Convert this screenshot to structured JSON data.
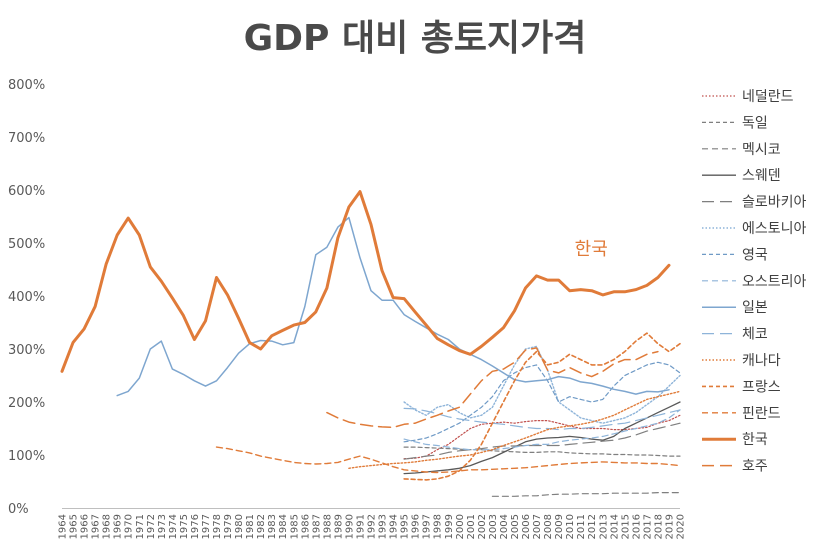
{
  "chart_data": {
    "type": "line",
    "title": "GDP 대비 총토지가격",
    "xlabel": "",
    "ylabel": "",
    "ylim": [
      0,
      800
    ],
    "yticks": [
      "0%",
      "100%",
      "200%",
      "300%",
      "400%",
      "500%",
      "600%",
      "700%",
      "800%"
    ],
    "yticks_values": [
      0,
      100,
      200,
      300,
      400,
      500,
      600,
      700,
      800
    ],
    "x_range": [
      1964,
      2020
    ],
    "grid": false,
    "legend_position": "right",
    "annotation": {
      "text": "한국",
      "x": 2011,
      "y": 455
    },
    "series": [
      {
        "name": "네덜란드",
        "color": "#c0504d",
        "style": "dotted",
        "width": 1.2,
        "start": 1995,
        "values": [
          93,
          94,
          98,
          110,
          120,
          135,
          150,
          158,
          160,
          162,
          160,
          163,
          165,
          165,
          160,
          155,
          150,
          150,
          150,
          148,
          148,
          150,
          152,
          160,
          165,
          175
        ]
      },
      {
        "name": "독일",
        "color": "#7f7f7f",
        "style": "dashed-short",
        "width": 1.2,
        "start": 1995,
        "values": [
          115,
          115,
          114,
          113,
          112,
          111,
          110,
          110,
          108,
          107,
          106,
          105,
          105,
          106,
          106,
          104,
          103,
          102,
          102,
          101,
          101,
          100,
          100,
          99,
          98,
          98
        ]
      },
      {
        "name": "멕시코",
        "color": "#7f7f7f",
        "style": "dashed",
        "width": 1.2,
        "start": 2003,
        "values": [
          22,
          22,
          22,
          23,
          23,
          25,
          26,
          26,
          27,
          27,
          27,
          28,
          28,
          28,
          28,
          29,
          29,
          29
        ]
      },
      {
        "name": "스웨덴",
        "color": "#595959",
        "style": "solid",
        "width": 1.3,
        "start": 1995,
        "values": [
          65,
          66,
          68,
          70,
          72,
          75,
          80,
          88,
          95,
          105,
          115,
          125,
          130,
          132,
          133,
          135,
          133,
          130,
          128,
          135,
          150,
          160,
          170,
          180,
          190,
          200
        ]
      },
      {
        "name": "슬로바키아",
        "color": "#7f7f7f",
        "style": "longdash",
        "width": 1.2,
        "start": 1995,
        "values": [
          92,
          95,
          98,
          100,
          105,
          108,
          110,
          112,
          115,
          117,
          117,
          118,
          118,
          118,
          118,
          120,
          122,
          124,
          126,
          128,
          132,
          138,
          145,
          150,
          155,
          160
        ]
      },
      {
        "name": "에스토니아",
        "color": "#8eb4d9",
        "style": "dotted",
        "width": 1.4,
        "start": 1995,
        "values": [
          200,
          185,
          175,
          190,
          195,
          180,
          170,
          175,
          190,
          230,
          270,
          300,
          305,
          260,
          200,
          185,
          170,
          165,
          160,
          165,
          170,
          180,
          195,
          210,
          230,
          250
        ]
      },
      {
        "name": "영국",
        "color": "#6f9ac6",
        "style": "dashed-short",
        "width": 1.2,
        "start": 1995,
        "values": [
          125,
          128,
          132,
          140,
          150,
          160,
          175,
          190,
          210,
          240,
          255,
          265,
          270,
          240,
          200,
          210,
          205,
          200,
          205,
          230,
          250,
          260,
          270,
          275,
          270,
          255
        ]
      },
      {
        "name": "오스트리아",
        "color": "#8eb4d9",
        "style": "dashed",
        "width": 1.2,
        "start": 1995,
        "values": [
          130,
          125,
          120,
          118,
          115,
          112,
          110,
          110,
          110,
          112,
          115,
          118,
          120,
          120,
          125,
          128,
          130,
          132,
          135,
          140,
          145,
          150,
          155,
          160,
          170,
          185
        ]
      },
      {
        "name": "일본",
        "color": "#7ea6cf",
        "style": "solid",
        "width": 1.5,
        "start": 1969,
        "values": [
          212,
          220,
          245,
          300,
          315,
          262,
          252,
          240,
          230,
          240,
          265,
          292,
          310,
          316,
          315,
          308,
          312,
          380,
          478,
          492,
          530,
          548,
          472,
          410,
          392,
          392,
          365,
          352,
          340,
          328,
          318,
          300,
          290,
          280,
          268,
          255,
          242,
          238,
          240,
          242,
          248,
          245,
          238,
          235,
          230,
          224,
          220,
          215,
          220,
          219,
          223
        ]
      },
      {
        "name": "체코",
        "color": "#8eb4d9",
        "style": "longdash",
        "width": 1.2,
        "start": 1995,
        "values": [
          188,
          187,
          183,
          178,
          172,
          168,
          165,
          162,
          160,
          158,
          155,
          152,
          150,
          150,
          148,
          150,
          150,
          152,
          155,
          158,
          160,
          165,
          170,
          175,
          180,
          185
        ]
      },
      {
        "name": "캐나다",
        "color": "#e07b39",
        "style": "dotted",
        "width": 1.4,
        "start": 1990,
        "values": [
          75,
          78,
          80,
          82,
          84,
          85,
          87,
          90,
          92,
          95,
          98,
          100,
          105,
          110,
          118,
          125,
          132,
          140,
          148,
          152,
          155,
          158,
          162,
          168,
          175,
          185,
          195,
          205,
          210,
          215,
          220
        ]
      },
      {
        "name": "프랑스",
        "color": "#e07b39",
        "style": "dashed-short",
        "width": 1.6,
        "start": 1995,
        "values": [
          55,
          54,
          53,
          55,
          60,
          70,
          90,
          120,
          160,
          200,
          240,
          275,
          295,
          270,
          275,
          290,
          280,
          270,
          270,
          280,
          295,
          315,
          330,
          310,
          295,
          310
        ]
      },
      {
        "name": "핀란드",
        "color": "#e07b39",
        "style": "dashed",
        "width": 1.4,
        "start": 1978,
        "values": [
          115,
          112,
          108,
          104,
          98,
          94,
          90,
          86,
          84,
          83,
          84,
          86,
          92,
          98,
          92,
          85,
          78,
          72,
          70,
          68,
          67,
          68,
          70,
          72,
          72,
          73,
          74,
          75,
          76,
          78,
          80,
          82,
          84,
          85,
          86,
          87,
          86,
          85,
          85,
          84,
          84,
          82,
          80
        ]
      },
      {
        "name": "한국",
        "color": "#e07b39",
        "style": "solid",
        "width": 3,
        "start": 1964,
        "values": [
          258,
          312,
          338,
          380,
          460,
          515,
          547,
          515,
          455,
          428,
          396,
          363,
          318,
          353,
          435,
          402,
          358,
          312,
          300,
          325,
          335,
          345,
          350,
          370,
          415,
          510,
          568,
          597,
          535,
          448,
          397,
          395,
          370,
          345,
          320,
          308,
          297,
          290,
          305,
          322,
          340,
          372,
          415,
          438,
          430,
          430,
          410,
          412,
          410,
          402,
          408,
          408,
          412,
          420,
          435,
          458
        ]
      },
      {
        "name": "호주",
        "color": "#e07b39",
        "style": "longdash",
        "width": 1.5,
        "start": 1988,
        "values": [
          180,
          170,
          162,
          158,
          155,
          153,
          152,
          158,
          160,
          168,
          175,
          183,
          190,
          215,
          240,
          258,
          262,
          275,
          298,
          302,
          260,
          255,
          265,
          255,
          248,
          258,
          272,
          280,
          280,
          290,
          295
        ]
      }
    ]
  }
}
